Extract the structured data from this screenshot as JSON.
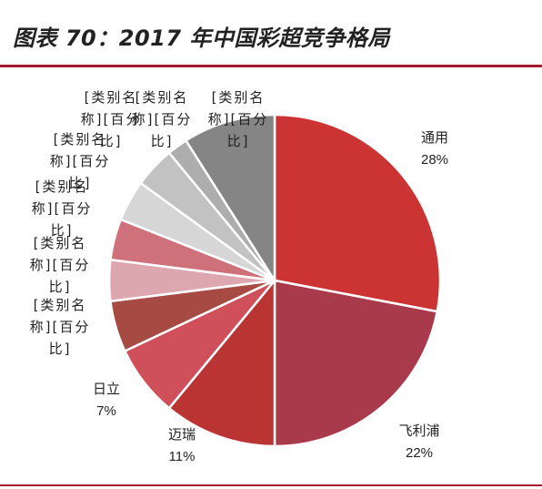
{
  "figure": {
    "title": "图表 70：2017 年中国彩超竞争格局"
  },
  "colors": {
    "rule": "#a6192e",
    "text": "#222222"
  },
  "chart_data": {
    "type": "pie",
    "title": "",
    "start": "12 o'clock",
    "direction": "clockwise",
    "slices": [
      {
        "label": "通用",
        "value": 28,
        "pct_text": "28%",
        "color": "#cc3333"
      },
      {
        "label": "飞利浦",
        "value": 22,
        "pct_text": "22%",
        "color": "#a93a4c"
      },
      {
        "label": "迈瑞",
        "value": 11,
        "pct_text": "11%",
        "color": "#bb3434"
      },
      {
        "label": "日立",
        "value": 7,
        "pct_text": "7%",
        "color": "#cf4f5b"
      },
      {
        "label": "[类别名称][百分比]",
        "value": 5,
        "pct_text": "",
        "color": "#a74a44"
      },
      {
        "label": "[类别名称][百分比]",
        "value": 4,
        "pct_text": "",
        "color": "#dda7b0"
      },
      {
        "label": "[类别名称][百分比]",
        "value": 4,
        "pct_text": "",
        "color": "#cf717a"
      },
      {
        "label": "[类别名称][百分比]",
        "value": 4,
        "pct_text": "",
        "color": "#d6d6d6"
      },
      {
        "label": "[类别名称][百分比]",
        "value": 4,
        "pct_text": "",
        "color": "#c2c2c2"
      },
      {
        "label": "[类别名称][百分比]",
        "value": 2,
        "pct_text": "",
        "color": "#adadad"
      },
      {
        "label": "[类别名称][百分比]",
        "value": 9,
        "pct_text": "",
        "color": "#858585"
      }
    ],
    "label_lines": [
      [
        "通用",
        "28%"
      ],
      [
        "飞利浦",
        "22%"
      ],
      [
        "迈瑞",
        "11%"
      ],
      [
        "日立",
        "7%"
      ],
      [
        "[类别名",
        "称][百分",
        "比]"
      ],
      [
        "[类别名",
        "称][百分",
        "比]"
      ],
      [
        "[类别名",
        "称][百分",
        "比]"
      ],
      [
        "[类别名",
        "称][百分",
        "比]"
      ],
      [
        "[类别名",
        "称][百分",
        "比]"
      ],
      [
        "[类别名",
        "称][百分",
        "比]"
      ],
      [
        "[类别名",
        "称][百分",
        "比]"
      ]
    ]
  }
}
